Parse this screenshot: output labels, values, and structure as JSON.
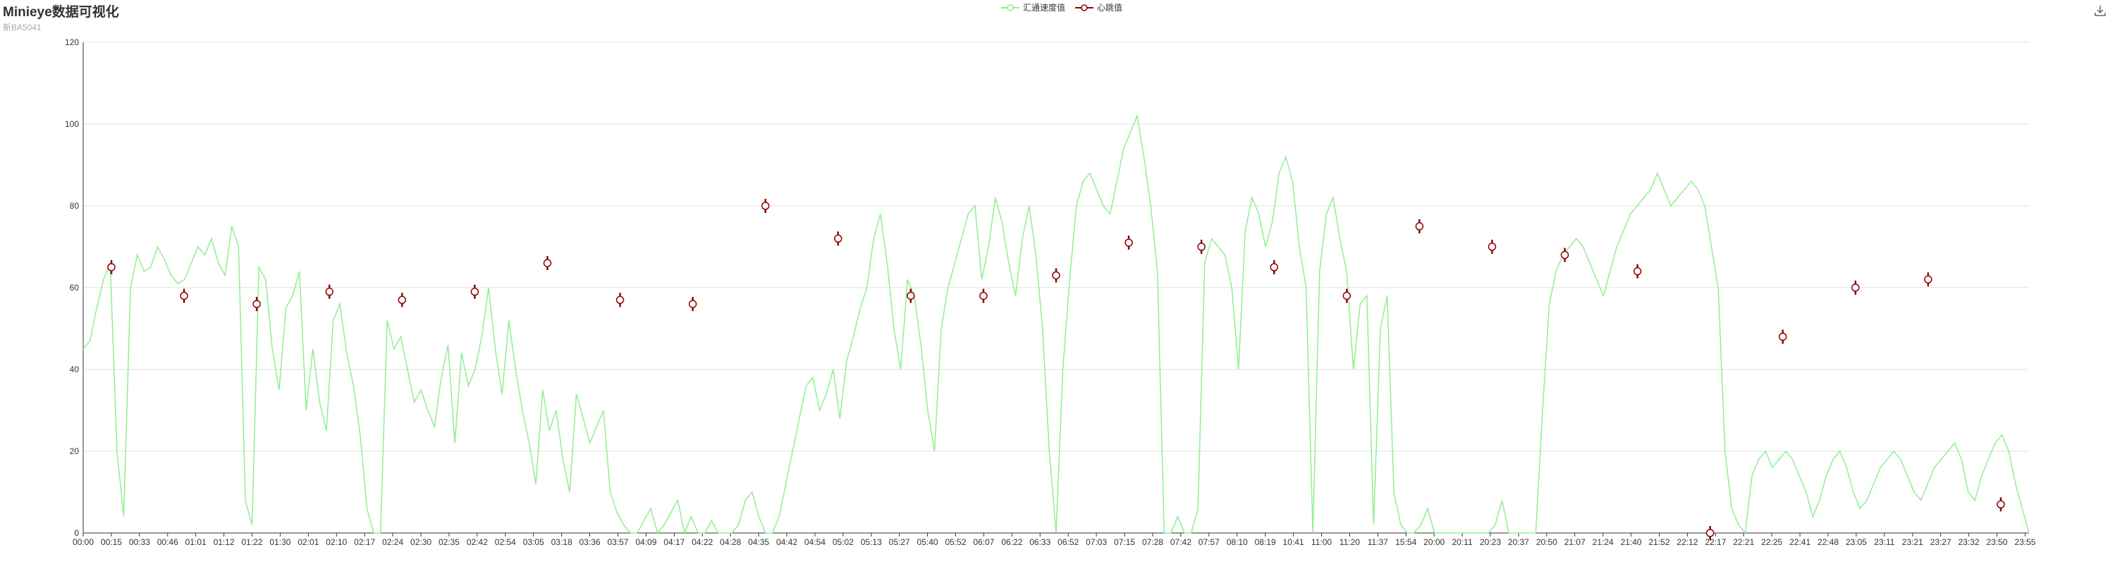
{
  "title": "Minieye数据可视化",
  "subtitle": "新BA5041",
  "toolbox": {
    "icon": "download-icon"
  },
  "legend": [
    {
      "name": "汇通速度值",
      "color": "#90ee90"
    },
    {
      "name": "心跳值",
      "color": "#8b0000"
    }
  ],
  "chart_data": {
    "type": "line",
    "title": "Minieye数据可视化",
    "subtitle": "新BA5041",
    "ylim": [
      0,
      120
    ],
    "yticks": [
      0,
      20,
      40,
      60,
      80,
      100,
      120
    ],
    "grid": true,
    "legend_position": "top-center",
    "xticks": [
      "00:00",
      "00:15",
      "00:33",
      "00:46",
      "01:01",
      "01:12",
      "01:22",
      "01:30",
      "02:01",
      "02:10",
      "02:17",
      "02:24",
      "02:30",
      "02:35",
      "02:42",
      "02:54",
      "03:05",
      "03:18",
      "03:36",
      "03:57",
      "04:09",
      "04:17",
      "04:22",
      "04:28",
      "04:35",
      "04:42",
      "04:54",
      "05:02",
      "05:13",
      "05:27",
      "05:40",
      "05:52",
      "06:07",
      "06:22",
      "06:33",
      "06:52",
      "07:03",
      "07:15",
      "07:28",
      "07:42",
      "07:57",
      "08:10",
      "08:19",
      "10:41",
      "11:00",
      "11:20",
      "11:37",
      "15:54",
      "20:00",
      "20:11",
      "20:23",
      "20:37",
      "20:50",
      "21:07",
      "21:24",
      "21:40",
      "21:52",
      "22:12",
      "22:17",
      "22:21",
      "22:25",
      "22:41",
      "22:48",
      "23:05",
      "23:11",
      "23:21",
      "23:27",
      "23:32",
      "23:50",
      "23:55"
    ],
    "series": [
      {
        "name": "汇通速度值",
        "color": "#90ee90",
        "values": [
          45,
          47,
          55,
          62,
          66,
          20,
          4,
          60,
          68,
          64,
          65,
          70,
          67,
          63,
          61,
          62,
          66,
          70,
          68,
          72,
          66,
          63,
          75,
          70,
          8,
          2,
          65,
          62,
          45,
          35,
          55,
          58,
          64,
          30,
          45,
          32,
          25,
          52,
          56,
          44,
          36,
          24,
          6,
          -2,
          0,
          52,
          45,
          48,
          40,
          32,
          35,
          30,
          26,
          38,
          46,
          22,
          44,
          36,
          40,
          48,
          60,
          45,
          34,
          52,
          40,
          30,
          22,
          12,
          35,
          25,
          30,
          18,
          10,
          34,
          28,
          22,
          26,
          30,
          10,
          5,
          2,
          0,
          0,
          3,
          6,
          0,
          2,
          5,
          8,
          0,
          4,
          0,
          0,
          3,
          0,
          0,
          0,
          2,
          8,
          10,
          4,
          0,
          0,
          4,
          12,
          20,
          28,
          36,
          38,
          30,
          34,
          40,
          28,
          42,
          48,
          55,
          60,
          72,
          78,
          66,
          50,
          40,
          62,
          58,
          46,
          30,
          20,
          50,
          60,
          66,
          72,
          78,
          80,
          62,
          70,
          82,
          76,
          66,
          58,
          72,
          80,
          68,
          50,
          20,
          0,
          40,
          62,
          80,
          86,
          88,
          84,
          80,
          78,
          86,
          94,
          98,
          102,
          92,
          80,
          64,
          0,
          0,
          4,
          0,
          0,
          6,
          66,
          72,
          70,
          68,
          60,
          40,
          74,
          82,
          78,
          70,
          76,
          88,
          92,
          86,
          70,
          60,
          0,
          64,
          78,
          82,
          72,
          64,
          40,
          56,
          58,
          2,
          50,
          58,
          10,
          2,
          0,
          0,
          2,
          6,
          0,
          0,
          0,
          0,
          0,
          0,
          0,
          0,
          0,
          2,
          8,
          0,
          0,
          0,
          0,
          0,
          30,
          56,
          64,
          68,
          70,
          72,
          70,
          66,
          62,
          58,
          64,
          70,
          74,
          78,
          80,
          82,
          84,
          88,
          84,
          80,
          82,
          84,
          86,
          84,
          80,
          70,
          60,
          20,
          6,
          2,
          0,
          14,
          18,
          20,
          16,
          18,
          20,
          18,
          14,
          10,
          4,
          8,
          14,
          18,
          20,
          16,
          10,
          6,
          8,
          12,
          16,
          18,
          20,
          18,
          14,
          10,
          8,
          12,
          16,
          18,
          20,
          22,
          18,
          10,
          8,
          14,
          18,
          22,
          24,
          20,
          12,
          6,
          0
        ]
      },
      {
        "name": "心跳值",
        "color": "#8b0000",
        "values": [
          65,
          58,
          56,
          59,
          57,
          59,
          66,
          57,
          56,
          80,
          72,
          58,
          58,
          63,
          71,
          70,
          65,
          58,
          75,
          70,
          68,
          64,
          0,
          48,
          60,
          62,
          7
        ]
      }
    ]
  }
}
